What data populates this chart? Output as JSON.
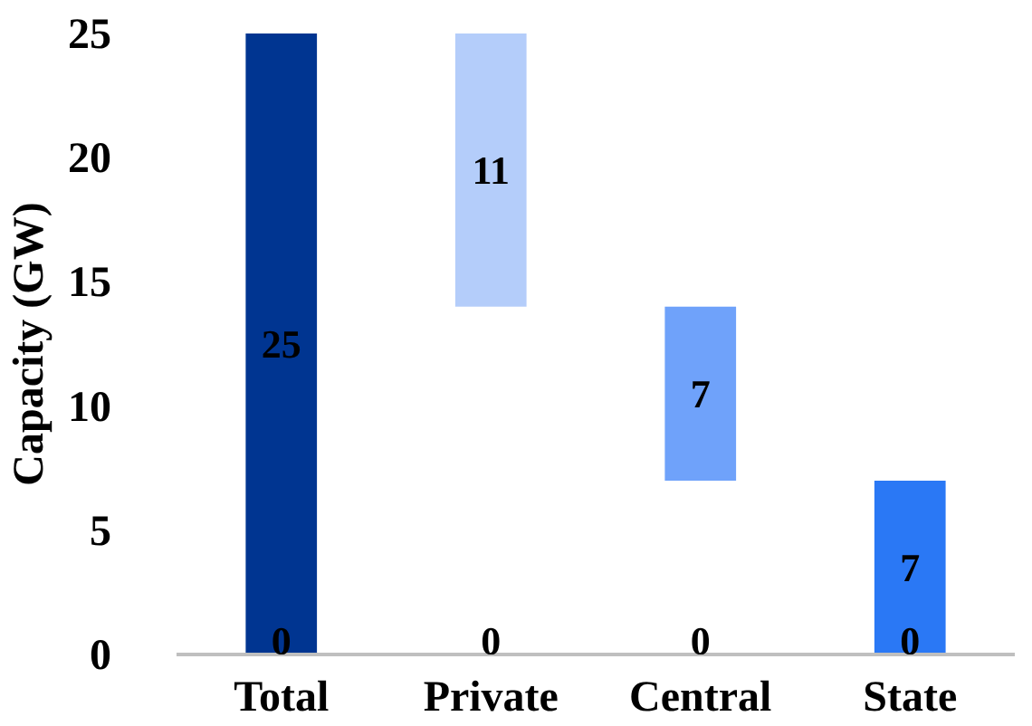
{
  "chart_data": {
    "type": "bar",
    "ylabel": "Capacity (GW)",
    "categories": [
      "Total",
      "Private",
      "Central",
      "State"
    ],
    "values": [
      25,
      11,
      7,
      7
    ],
    "base": [
      0,
      14,
      7,
      0
    ],
    "colors": [
      "#003591",
      "#b4cdfa",
      "#6fa2fa",
      "#2a78f5"
    ],
    "ylim": [
      0,
      25
    ],
    "yticks": [
      0,
      5,
      10,
      15,
      20,
      25
    ],
    "data_labels": true,
    "grid": false,
    "annotations": [
      "0",
      "0",
      "0",
      "0"
    ]
  }
}
